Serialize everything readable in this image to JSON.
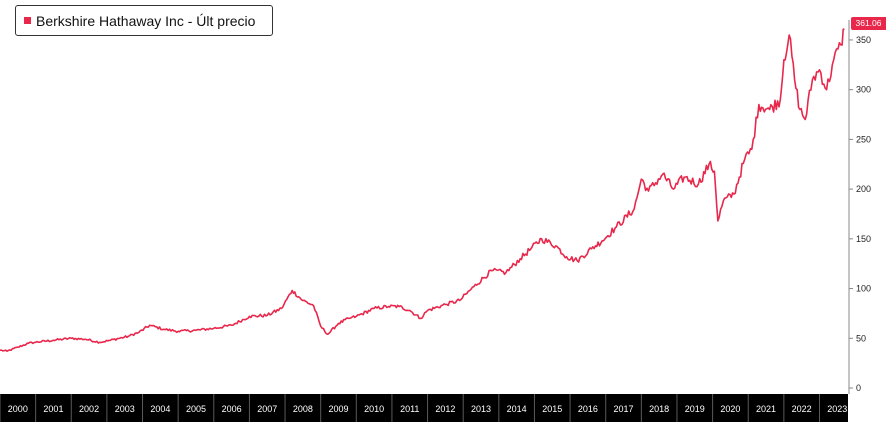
{
  "legend": {
    "label": "Berkshire Hathaway Inc - Últ precio",
    "color": "#e8274b"
  },
  "last_price_label": "361.06",
  "colors": {
    "series": "#e8274b",
    "axis_band": "#000000",
    "axis_text": "#ffffff",
    "background": "#ffffff"
  },
  "chart_data": {
    "type": "line",
    "title": "",
    "xlabel": "",
    "ylabel": "",
    "xlim": [
      2000.0,
      2023.8
    ],
    "ylim": [
      0,
      362
    ],
    "y_ticks": [
      0,
      50,
      100,
      150,
      200,
      250,
      300,
      350
    ],
    "x_tick_labels": [
      "2000",
      "2001",
      "2002",
      "2003",
      "2004",
      "2005",
      "2006",
      "2007",
      "2008",
      "2009",
      "2010",
      "2011",
      "2012",
      "2013",
      "2014",
      "2015",
      "2016",
      "2017",
      "2018",
      "2019",
      "2020",
      "2021",
      "2022",
      "2023"
    ],
    "grid": false,
    "legend_position": "top-left",
    "last_value": 361.06,
    "series": [
      {
        "name": "Berkshire Hathaway Inc - Últ precio",
        "color": "#e8274b",
        "x": [
          2000.0,
          2000.2,
          2000.5,
          2000.8,
          2001.0,
          2001.5,
          2002.0,
          2002.4,
          2002.8,
          2003.1,
          2003.6,
          2003.9,
          2004.2,
          2004.6,
          2005.0,
          2005.5,
          2006.0,
          2006.5,
          2007.0,
          2007.5,
          2007.9,
          2008.2,
          2008.5,
          2008.8,
          2009.0,
          2009.2,
          2009.5,
          2009.8,
          2010.0,
          2010.5,
          2010.9,
          2011.2,
          2011.5,
          2011.8,
          2012.0,
          2012.5,
          2012.9,
          2013.3,
          2013.8,
          2014.2,
          2014.6,
          2014.9,
          2015.2,
          2015.6,
          2015.9,
          2016.2,
          2016.6,
          2016.9,
          2017.3,
          2017.8,
          2018.0,
          2018.2,
          2018.6,
          2018.9,
          2019.2,
          2019.6,
          2019.9,
          2020.05,
          2020.15,
          2020.3,
          2020.6,
          2020.9,
          2021.1,
          2021.3,
          2021.6,
          2021.9,
          2022.0,
          2022.15,
          2022.3,
          2022.45,
          2022.6,
          2022.8,
          2023.0,
          2023.2,
          2023.4,
          2023.6,
          2023.7
        ],
        "y": [
          38,
          37,
          41,
          45,
          46,
          48,
          50,
          49,
          46,
          48,
          52,
          56,
          63,
          59,
          57,
          58,
          60,
          63,
          72,
          73,
          80,
          98,
          88,
          83,
          62,
          54,
          65,
          70,
          72,
          80,
          82,
          82,
          78,
          70,
          78,
          84,
          88,
          102,
          118,
          116,
          130,
          140,
          150,
          143,
          132,
          128,
          140,
          148,
          162,
          180,
          210,
          198,
          215,
          200,
          212,
          205,
          225,
          218,
          168,
          188,
          195,
          230,
          240,
          285,
          280,
          290,
          330,
          355,
          310,
          280,
          270,
          310,
          320,
          300,
          330,
          345,
          361.06
        ]
      }
    ]
  }
}
